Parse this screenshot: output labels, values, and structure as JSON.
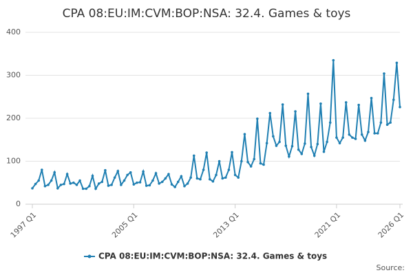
{
  "chart_data": {
    "type": "line",
    "title": "CPA 08:EU:IM:CVM:BOP:NSA: 32.4. Games & toys",
    "source": "Source:",
    "categories": [
      "1997 Q1",
      null,
      null,
      null,
      null,
      null,
      null,
      null,
      null,
      null,
      null,
      null,
      null,
      null,
      null,
      null,
      null,
      null,
      null,
      null,
      null,
      null,
      null,
      null,
      null,
      null,
      null,
      null,
      null,
      null,
      null,
      null,
      "2005 Q1",
      null,
      null,
      null,
      null,
      null,
      null,
      null,
      null,
      null,
      null,
      null,
      null,
      null,
      null,
      null,
      null,
      null,
      null,
      null,
      null,
      null,
      null,
      null,
      null,
      null,
      null,
      null,
      null,
      null,
      null,
      null,
      "2013 Q1",
      null,
      null,
      null,
      null,
      null,
      null,
      null,
      null,
      null,
      null,
      null,
      null,
      null,
      null,
      null,
      null,
      null,
      null,
      null,
      null,
      null,
      null,
      null,
      null,
      null,
      null,
      null,
      null,
      null,
      null,
      null,
      "2021 Q1",
      null,
      null,
      null,
      null,
      null,
      null,
      null,
      null,
      null,
      null,
      null,
      null,
      null,
      null,
      null,
      null,
      null,
      null,
      null,
      "2026 Q1"
    ],
    "series": [
      {
        "name": "CPA 08:EU:IM:CVM:BOP:NSA: 32.4. Games & toys",
        "color": "#1f7fb2",
        "values": [
          37,
          47,
          55,
          80,
          42,
          45,
          55,
          74,
          37,
          45,
          47,
          70,
          48,
          50,
          45,
          55,
          36,
          36,
          42,
          66,
          36,
          48,
          52,
          79,
          43,
          45,
          62,
          77,
          45,
          55,
          68,
          74,
          46,
          50,
          51,
          76,
          43,
          44,
          55,
          72,
          48,
          52,
          60,
          70,
          46,
          40,
          52,
          65,
          42,
          48,
          62,
          113,
          60,
          58,
          80,
          120,
          58,
          53,
          68,
          100,
          60,
          62,
          80,
          121,
          68,
          62,
          100,
          163,
          98,
          88,
          105,
          199,
          95,
          92,
          142,
          212,
          158,
          136,
          145,
          232,
          136,
          111,
          135,
          216,
          127,
          117,
          141,
          257,
          133,
          113,
          140,
          234,
          122,
          145,
          190,
          335,
          155,
          142,
          155,
          237,
          162,
          155,
          152,
          231,
          162,
          148,
          168,
          247,
          165,
          165,
          190,
          304,
          185,
          190,
          243,
          329,
          226
        ]
      }
    ],
    "ylim": [
      0,
      400
    ],
    "yticks": [
      0,
      100,
      200,
      300,
      400
    ],
    "grid": true,
    "legend": "bottom"
  }
}
